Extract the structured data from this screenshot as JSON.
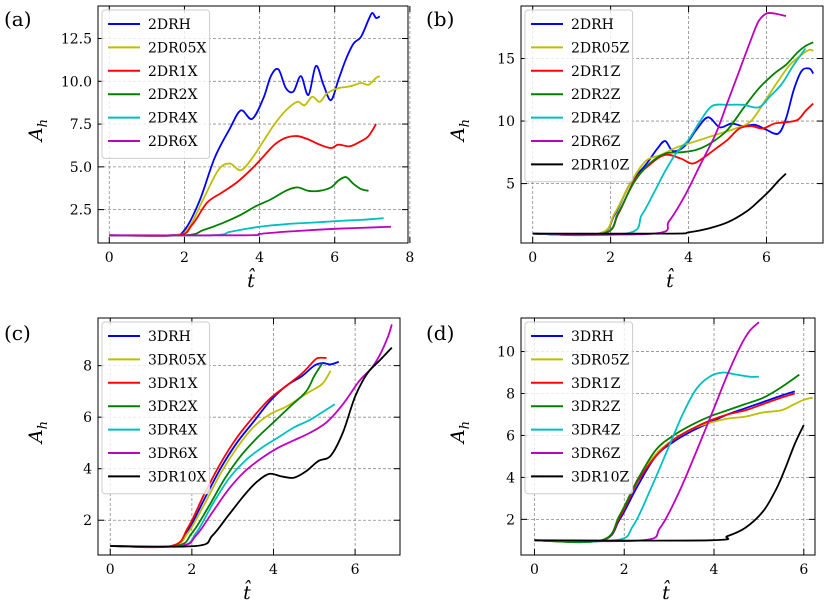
{
  "figure_title": "",
  "chart_data": [
    {
      "type": "line",
      "panel_label": "(a)",
      "xlabel": "t̂",
      "ylabel": "A_h",
      "ylabel_main": "A",
      "ylabel_sub": "h",
      "xlim": [
        -0.3,
        7.95
      ],
      "ylim": [
        0.55,
        14.4
      ],
      "xticks": [
        0,
        2,
        4,
        6,
        8
      ],
      "yticks": [
        2.5,
        5.0,
        7.5,
        10.0,
        12.5
      ],
      "ytick_labels": [
        "2.5",
        "5.0",
        "7.5",
        "10.0",
        "12.5"
      ],
      "grid": true,
      "legend_position": "upper-left",
      "series": [
        {
          "name": "2DRH",
          "color": "#0000ff",
          "x": [
            0,
            1.6,
            2.0,
            2.4,
            2.8,
            3.2,
            3.5,
            3.8,
            4.1,
            4.3,
            4.5,
            4.7,
            4.9,
            5.1,
            5.3,
            5.5,
            5.7,
            5.9,
            6.1,
            6.3,
            6.5,
            6.7,
            6.9,
            7.0,
            7.1,
            7.2
          ],
          "y": [
            1.0,
            1.0,
            1.3,
            3.0,
            5.5,
            7.2,
            8.3,
            7.8,
            9.0,
            10.3,
            10.7,
            9.6,
            9.4,
            10.3,
            9.2,
            10.9,
            9.8,
            8.9,
            10.1,
            11.3,
            12.2,
            12.6,
            13.6,
            14.0,
            13.7,
            13.8
          ]
        },
        {
          "name": "2DR05X",
          "color": "#bfbf00",
          "x": [
            0,
            1.7,
            2.1,
            2.5,
            2.9,
            3.2,
            3.5,
            3.8,
            4.1,
            4.4,
            4.7,
            5.0,
            5.2,
            5.4,
            5.6,
            5.8,
            6.1,
            6.4,
            6.7,
            6.9,
            7.1,
            7.2
          ],
          "y": [
            1.0,
            1.0,
            1.4,
            3.1,
            4.8,
            5.2,
            4.8,
            5.5,
            6.5,
            7.5,
            8.3,
            8.8,
            8.6,
            9.1,
            8.8,
            9.3,
            9.6,
            9.7,
            9.9,
            9.8,
            10.2,
            10.3
          ]
        },
        {
          "name": "2DR1X",
          "color": "#ff0000",
          "x": [
            0,
            1.8,
            2.2,
            2.6,
            3.0,
            3.4,
            3.8,
            4.1,
            4.4,
            4.7,
            5.0,
            5.3,
            5.6,
            5.9,
            6.1,
            6.4,
            6.7,
            6.9,
            7.1
          ],
          "y": [
            1.0,
            1.0,
            1.6,
            2.9,
            3.5,
            4.1,
            4.9,
            5.6,
            6.3,
            6.7,
            6.8,
            6.6,
            6.3,
            6.1,
            6.3,
            6.2,
            6.5,
            6.8,
            7.5
          ]
        },
        {
          "name": "2DR2X",
          "color": "#008000",
          "x": [
            0,
            2.0,
            2.5,
            3.0,
            3.5,
            3.9,
            4.3,
            4.7,
            5.0,
            5.3,
            5.6,
            5.9,
            6.1,
            6.3,
            6.5,
            6.7,
            6.9
          ],
          "y": [
            1.0,
            1.0,
            1.3,
            1.7,
            2.2,
            2.7,
            3.1,
            3.6,
            3.8,
            3.6,
            3.6,
            3.8,
            4.2,
            4.4,
            4.0,
            3.7,
            3.6
          ]
        },
        {
          "name": "2DR4X",
          "color": "#00bfbf",
          "x": [
            0,
            2.7,
            3.2,
            3.7,
            4.2,
            4.7,
            5.2,
            5.7,
            6.2,
            6.7,
            7.0,
            7.3
          ],
          "y": [
            1.0,
            1.0,
            1.2,
            1.4,
            1.55,
            1.65,
            1.72,
            1.78,
            1.85,
            1.9,
            1.95,
            2.0
          ]
        },
        {
          "name": "2DR6X",
          "color": "#bf00bf",
          "x": [
            0,
            3.6,
            4.0,
            4.5,
            5.0,
            5.5,
            6.0,
            6.5,
            7.0,
            7.5
          ],
          "y": [
            1.0,
            1.0,
            1.08,
            1.18,
            1.25,
            1.32,
            1.38,
            1.42,
            1.46,
            1.5
          ]
        }
      ]
    },
    {
      "type": "line",
      "panel_label": "(b)",
      "xlabel": "t̂",
      "ylabel": "A_h",
      "ylabel_main": "A",
      "ylabel_sub": "h",
      "xlim": [
        -0.3,
        7.45
      ],
      "ylim": [
        0.25,
        19.2
      ],
      "xticks": [
        0,
        2,
        4,
        6
      ],
      "yticks": [
        5,
        10,
        15
      ],
      "ytick_labels": [
        "5",
        "10",
        "15"
      ],
      "grid": true,
      "legend_position": "upper-left",
      "series": [
        {
          "name": "2DRH",
          "color": "#0000ff",
          "x": [
            0,
            1.7,
            2.1,
            2.5,
            2.9,
            3.2,
            3.4,
            3.6,
            3.9,
            4.2,
            4.5,
            4.8,
            5.1,
            5.4,
            5.7,
            6.0,
            6.3,
            6.5,
            6.7,
            6.9,
            7.1,
            7.2
          ],
          "y": [
            1.0,
            1.0,
            2.5,
            5.0,
            6.5,
            7.8,
            8.4,
            7.6,
            8.0,
            9.3,
            10.3,
            9.5,
            9.8,
            9.6,
            9.7,
            9.3,
            9.0,
            10.2,
            12.5,
            14.0,
            14.2,
            13.8
          ]
        },
        {
          "name": "2DR05Z",
          "color": "#bfbf00",
          "x": [
            0,
            1.7,
            2.1,
            2.5,
            2.9,
            3.3,
            3.7,
            4.1,
            4.4,
            4.8,
            5.2,
            5.6,
            6.0,
            6.3,
            6.6,
            6.9,
            7.1,
            7.2
          ],
          "y": [
            1.0,
            1.0,
            2.6,
            5.0,
            6.8,
            7.3,
            7.9,
            8.3,
            8.6,
            9.0,
            9.4,
            10.0,
            11.8,
            13.2,
            14.5,
            15.3,
            15.7,
            15.6
          ]
        },
        {
          "name": "2DR1Z",
          "color": "#ff0000",
          "x": [
            0,
            1.8,
            2.2,
            2.6,
            3.0,
            3.4,
            3.8,
            4.1,
            4.4,
            4.7,
            5.0,
            5.3,
            5.6,
            5.9,
            6.2,
            6.5,
            6.8,
            7.0,
            7.2
          ],
          "y": [
            1.0,
            1.0,
            2.6,
            5.2,
            6.5,
            7.3,
            7.0,
            6.6,
            7.1,
            7.8,
            8.5,
            9.4,
            9.6,
            9.4,
            9.8,
            9.9,
            10.1,
            10.8,
            11.4
          ]
        },
        {
          "name": "2DR2Z",
          "color": "#008000",
          "x": [
            0,
            1.8,
            2.2,
            2.6,
            3.0,
            3.4,
            3.8,
            4.2,
            4.6,
            5.0,
            5.4,
            5.8,
            6.2,
            6.5,
            6.8,
            7.0,
            7.2
          ],
          "y": [
            1.0,
            1.0,
            2.7,
            5.1,
            6.6,
            7.4,
            7.5,
            7.7,
            8.3,
            9.3,
            11.0,
            12.6,
            13.8,
            14.5,
            15.5,
            16.0,
            16.3
          ]
        },
        {
          "name": "2DR4Z",
          "color": "#00bfbf",
          "x": [
            0,
            2.4,
            2.8,
            3.1,
            3.4,
            3.7,
            4.0,
            4.3,
            4.6,
            5.0,
            5.4,
            5.8,
            6.1,
            6.4,
            6.7,
            7.0
          ],
          "y": [
            1.0,
            1.0,
            2.5,
            4.2,
            6.0,
            7.5,
            8.5,
            10.0,
            11.2,
            11.3,
            11.3,
            11.1,
            12.0,
            13.0,
            14.5,
            15.8
          ]
        },
        {
          "name": "2DR6Z",
          "color": "#bf00bf",
          "x": [
            0,
            3.1,
            3.5,
            3.9,
            4.3,
            4.7,
            5.0,
            5.3,
            5.6,
            5.8,
            6.0,
            6.2,
            6.5
          ],
          "y": [
            1.0,
            1.0,
            2.0,
            4.0,
            6.5,
            9.0,
            11.5,
            14.0,
            16.5,
            18.0,
            18.6,
            18.6,
            18.4
          ]
        },
        {
          "name": "2DR10Z",
          "color": "#000000",
          "x": [
            0,
            3.5,
            4.0,
            4.5,
            5.0,
            5.5,
            5.8,
            6.1,
            6.3,
            6.5
          ],
          "y": [
            1.0,
            1.0,
            1.1,
            1.4,
            1.9,
            2.8,
            3.6,
            4.5,
            5.2,
            5.8
          ]
        }
      ]
    },
    {
      "type": "line",
      "panel_label": "(c)",
      "xlabel": "t̂",
      "ylabel": "A_h",
      "ylabel_main": "A",
      "ylabel_sub": "h",
      "xlim": [
        -0.3,
        7.1
      ],
      "ylim": [
        0.65,
        9.85
      ],
      "xticks": [
        0,
        2,
        4,
        6
      ],
      "yticks": [
        2,
        4,
        6,
        8
      ],
      "ytick_labels": [
        "2",
        "4",
        "6",
        "8"
      ],
      "grid": true,
      "legend_position": "upper-left",
      "series": [
        {
          "name": "3DRH",
          "color": "#0000ff",
          "x": [
            0,
            1.5,
            1.9,
            2.3,
            2.7,
            3.1,
            3.5,
            3.9,
            4.3,
            4.7,
            5.0,
            5.2,
            5.4,
            5.6
          ],
          "y": [
            1.0,
            1.0,
            1.6,
            2.8,
            4.0,
            5.0,
            5.8,
            6.6,
            7.2,
            7.6,
            8.0,
            8.1,
            8.05,
            8.15
          ]
        },
        {
          "name": "3DR05X",
          "color": "#bfbf00",
          "x": [
            0,
            1.5,
            1.9,
            2.3,
            2.7,
            3.1,
            3.5,
            3.9,
            4.3,
            4.6,
            4.9,
            5.2,
            5.4
          ],
          "y": [
            1.0,
            1.0,
            1.5,
            2.6,
            3.8,
            4.8,
            5.6,
            6.1,
            6.4,
            6.7,
            7.0,
            7.3,
            7.8
          ]
        },
        {
          "name": "3DR1X",
          "color": "#ff0000",
          "x": [
            0,
            1.5,
            1.9,
            2.3,
            2.7,
            3.1,
            3.5,
            3.9,
            4.3,
            4.7,
            5.0,
            5.1,
            5.3
          ],
          "y": [
            1.0,
            1.0,
            1.7,
            3.0,
            4.2,
            5.2,
            6.0,
            6.7,
            7.2,
            7.7,
            8.2,
            8.3,
            8.3
          ]
        },
        {
          "name": "3DR2X",
          "color": "#008000",
          "x": [
            0,
            1.6,
            2.0,
            2.4,
            2.8,
            3.2,
            3.6,
            4.0,
            4.4,
            4.8,
            5.0,
            5.2
          ],
          "y": [
            1.0,
            1.0,
            1.5,
            2.5,
            3.6,
            4.5,
            5.2,
            5.8,
            6.4,
            7.0,
            7.6,
            8.1
          ]
        },
        {
          "name": "3DR4X",
          "color": "#00bfbf",
          "x": [
            0,
            1.7,
            2.1,
            2.5,
            2.9,
            3.3,
            3.7,
            4.1,
            4.5,
            4.9,
            5.3,
            5.5
          ],
          "y": [
            1.0,
            1.0,
            1.5,
            2.6,
            3.6,
            4.3,
            4.8,
            5.2,
            5.6,
            5.9,
            6.3,
            6.5
          ]
        },
        {
          "name": "3DR6X",
          "color": "#bf00bf",
          "x": [
            0,
            1.7,
            2.1,
            2.5,
            2.9,
            3.3,
            3.7,
            4.1,
            4.5,
            4.9,
            5.3,
            5.7,
            6.1,
            6.4,
            6.6,
            6.8,
            6.9
          ],
          "y": [
            1.0,
            1.0,
            1.4,
            2.3,
            3.2,
            3.9,
            4.4,
            4.8,
            5.1,
            5.4,
            5.8,
            6.5,
            7.4,
            7.9,
            8.4,
            9.1,
            9.6
          ]
        },
        {
          "name": "3DR10X",
          "color": "#000000",
          "x": [
            0,
            2.1,
            2.5,
            2.9,
            3.3,
            3.6,
            3.9,
            4.2,
            4.5,
            4.8,
            5.1,
            5.4,
            5.7,
            6.0,
            6.3,
            6.6,
            6.9
          ],
          "y": [
            1.0,
            1.0,
            1.4,
            2.2,
            3.0,
            3.5,
            3.8,
            3.7,
            3.65,
            3.9,
            4.3,
            4.5,
            5.4,
            6.8,
            7.7,
            8.2,
            8.7
          ]
        }
      ]
    },
    {
      "type": "line",
      "panel_label": "(d)",
      "xlabel": "t̂",
      "ylabel": "A_h",
      "ylabel_main": "A",
      "ylabel_sub": "h",
      "xlim": [
        -0.3,
        6.25
      ],
      "ylim": [
        0.3,
        11.6
      ],
      "xticks": [
        0,
        2,
        4,
        6
      ],
      "yticks": [
        2,
        4,
        6,
        8,
        10
      ],
      "ytick_labels": [
        "2",
        "4",
        "6",
        "8",
        "10"
      ],
      "grid": true,
      "legend_position": "upper-left",
      "series": [
        {
          "name": "3DRH",
          "color": "#0000ff",
          "x": [
            0,
            1.5,
            1.9,
            2.3,
            2.7,
            3.1,
            3.5,
            3.9,
            4.3,
            4.7,
            5.1,
            5.5,
            5.8
          ],
          "y": [
            1.0,
            1.0,
            2.0,
            3.6,
            5.0,
            5.7,
            6.2,
            6.6,
            7.0,
            7.3,
            7.6,
            7.9,
            8.1
          ]
        },
        {
          "name": "3DR05Z",
          "color": "#bfbf00",
          "x": [
            0,
            1.5,
            1.9,
            2.3,
            2.7,
            3.1,
            3.5,
            3.9,
            4.3,
            4.7,
            5.1,
            5.5,
            5.8,
            6.0,
            6.2
          ],
          "y": [
            1.0,
            1.0,
            2.2,
            3.9,
            5.1,
            5.8,
            6.3,
            6.6,
            6.8,
            6.9,
            7.1,
            7.2,
            7.5,
            7.7,
            7.8
          ]
        },
        {
          "name": "3DR1Z",
          "color": "#ff0000",
          "x": [
            0,
            1.5,
            1.9,
            2.3,
            2.7,
            3.1,
            3.5,
            3.9,
            4.3,
            4.7,
            5.1,
            5.5,
            5.8
          ],
          "y": [
            1.0,
            1.0,
            2.1,
            3.8,
            5.0,
            5.8,
            6.3,
            6.7,
            7.0,
            7.2,
            7.5,
            7.8,
            8.0
          ]
        },
        {
          "name": "3DR2Z",
          "color": "#008000",
          "x": [
            0,
            1.5,
            1.9,
            2.3,
            2.7,
            3.1,
            3.5,
            3.9,
            4.3,
            4.7,
            5.1,
            5.5,
            5.9
          ],
          "y": [
            1.0,
            1.0,
            2.2,
            3.9,
            5.3,
            6.0,
            6.5,
            6.9,
            7.2,
            7.5,
            7.8,
            8.3,
            8.9
          ]
        },
        {
          "name": "3DR4Z",
          "color": "#00bfbf",
          "x": [
            0,
            1.8,
            2.2,
            2.6,
            3.0,
            3.3,
            3.6,
            3.9,
            4.2,
            4.5,
            4.8,
            5.0
          ],
          "y": [
            1.0,
            1.0,
            1.7,
            3.5,
            5.5,
            7.0,
            8.2,
            8.8,
            9.0,
            8.9,
            8.8,
            8.8
          ]
        },
        {
          "name": "3DR6Z",
          "color": "#bf00bf",
          "x": [
            0,
            2.4,
            2.8,
            3.2,
            3.6,
            4.0,
            4.3,
            4.6,
            4.8,
            5.0
          ],
          "y": [
            1.0,
            1.0,
            1.6,
            3.2,
            5.2,
            7.3,
            8.9,
            10.3,
            11.0,
            11.4
          ]
        },
        {
          "name": "3DR10Z",
          "color": "#000000",
          "x": [
            0,
            3.9,
            4.3,
            4.7,
            5.1,
            5.4,
            5.6,
            5.8,
            6.0
          ],
          "y": [
            1.0,
            1.0,
            1.2,
            1.6,
            2.4,
            3.5,
            4.5,
            5.6,
            6.5
          ]
        }
      ]
    }
  ]
}
